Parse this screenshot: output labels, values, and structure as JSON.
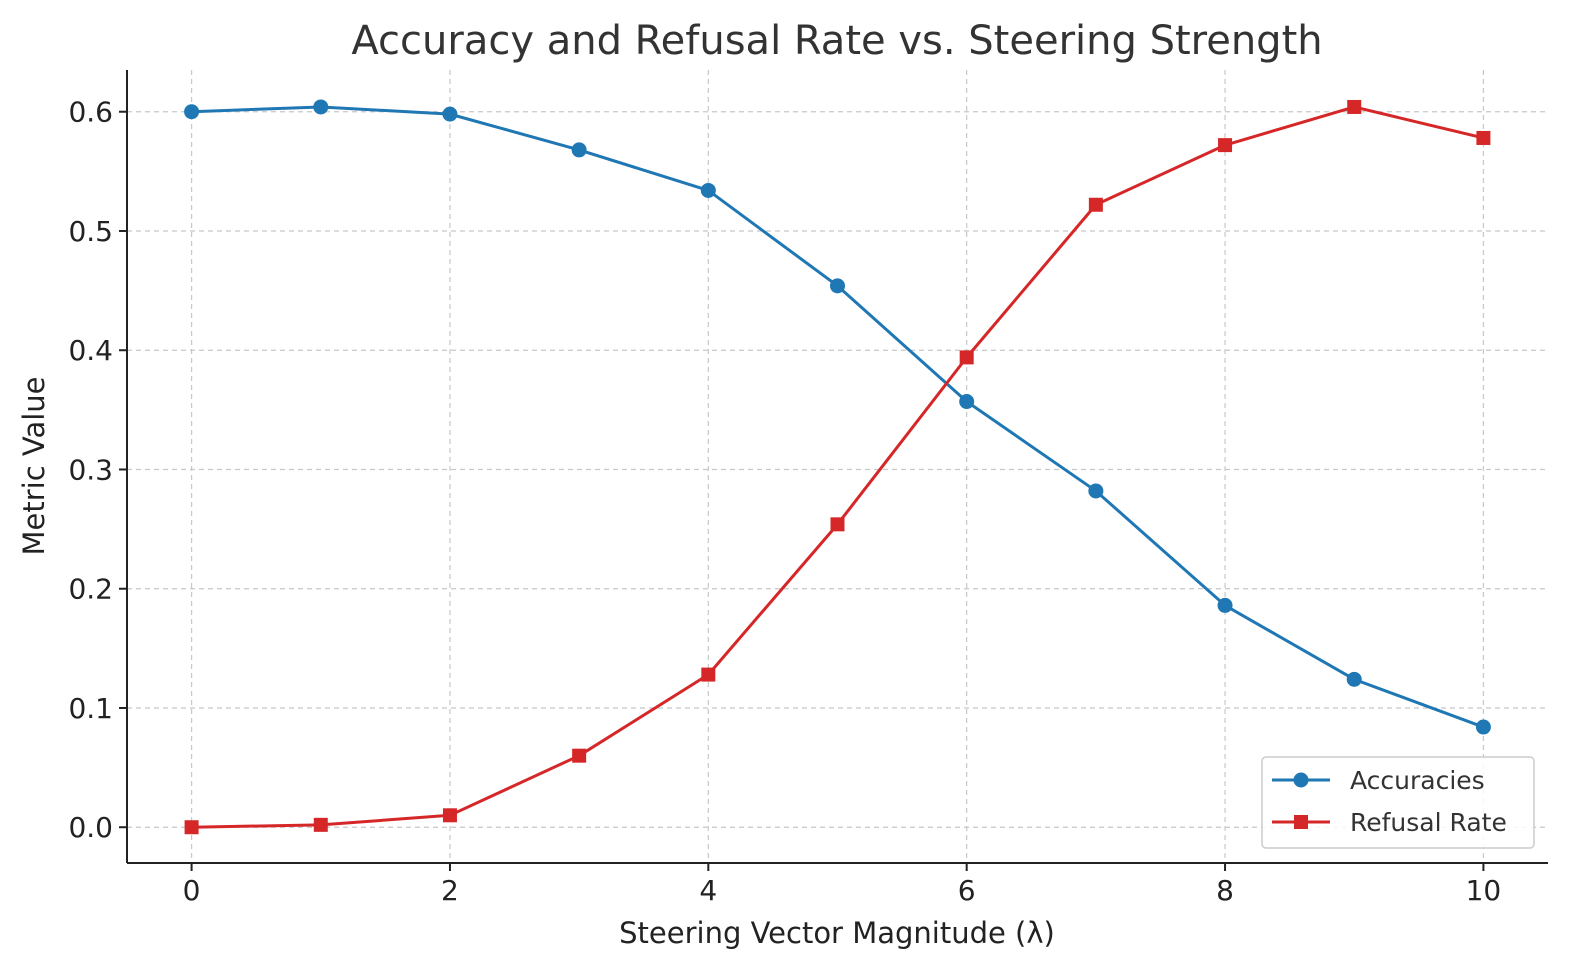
{
  "chart_data": {
    "type": "line",
    "title": "Accuracy and Refusal Rate vs. Steering Strength",
    "xlabel": "Steering Vector Magnitude (λ)",
    "ylabel": "Metric Value",
    "x": [
      0,
      1,
      2,
      3,
      4,
      5,
      6,
      7,
      8,
      9,
      10
    ],
    "xlim": [
      -0.5,
      10.5
    ],
    "ylim": [
      -0.03,
      0.635
    ],
    "xticks": [
      0,
      2,
      4,
      6,
      8,
      10
    ],
    "xtick_labels": [
      "0",
      "2",
      "4",
      "6",
      "8",
      "10"
    ],
    "yticks": [
      0.0,
      0.1,
      0.2,
      0.3,
      0.4,
      0.5,
      0.6
    ],
    "ytick_labels": [
      "0.0",
      "0.1",
      "0.2",
      "0.3",
      "0.4",
      "0.5",
      "0.6"
    ],
    "grid": true,
    "legend_position": "bottom-right",
    "series": [
      {
        "name": "Accuracies",
        "color": "#1f77b4",
        "marker": "circle",
        "values": [
          0.6,
          0.604,
          0.598,
          0.568,
          0.534,
          0.454,
          0.357,
          0.282,
          0.186,
          0.124,
          0.084
        ]
      },
      {
        "name": "Refusal Rate",
        "color": "#d62728",
        "marker": "square",
        "values": [
          0.0,
          0.002,
          0.01,
          0.06,
          0.128,
          0.254,
          0.394,
          0.522,
          0.572,
          0.604,
          0.578
        ]
      }
    ]
  }
}
